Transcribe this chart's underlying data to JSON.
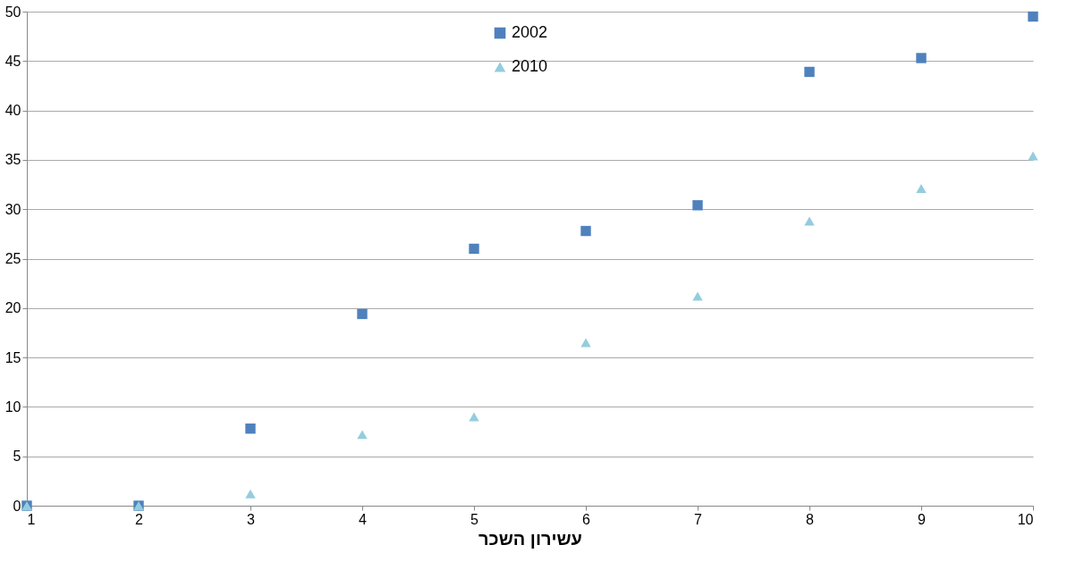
{
  "chart_data": {
    "type": "scatter",
    "xlabel": "עשירון השכר",
    "x": [
      1,
      2,
      3,
      4,
      5,
      6,
      7,
      8,
      9,
      10
    ],
    "series": [
      {
        "name": "2002",
        "color": "#4f81bd",
        "marker": "square",
        "values": [
          0,
          0,
          7.8,
          19.4,
          26,
          27.8,
          30.4,
          43.9,
          45.3,
          49.5
        ]
      },
      {
        "name": "2010",
        "color": "#93cddd",
        "marker": "triangle",
        "values": [
          0,
          0,
          1.2,
          7.2,
          9,
          16.5,
          21.2,
          28.8,
          32.1,
          35.4
        ]
      }
    ],
    "xlim": [
      1,
      10
    ],
    "xticks": [
      1,
      2,
      3,
      4,
      5,
      6,
      7,
      8,
      9,
      10
    ],
    "ylim": [
      0,
      50
    ],
    "yticks": [
      0,
      5,
      10,
      15,
      20,
      25,
      30,
      35,
      40,
      45,
      50
    ],
    "grid": "y",
    "legend": "top"
  }
}
